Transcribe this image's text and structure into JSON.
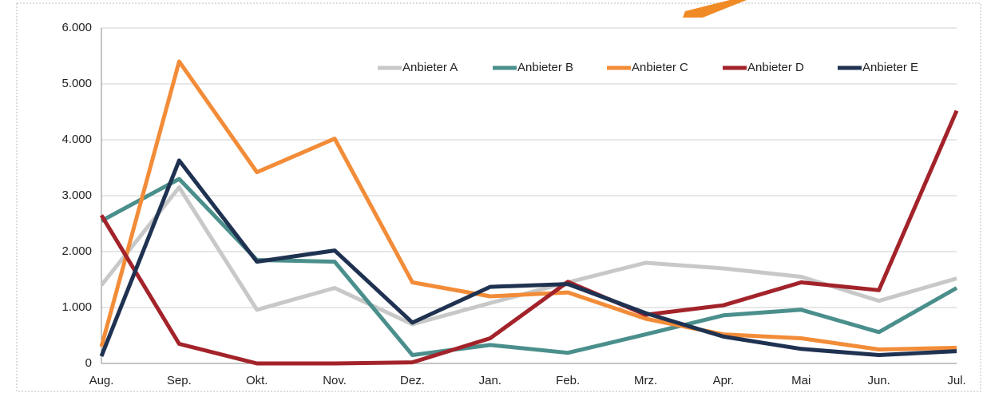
{
  "chart_data": {
    "type": "line",
    "categories": [
      "Aug.",
      "Sep.",
      "Okt.",
      "Nov.",
      "Dez.",
      "Jan.",
      "Feb.",
      "Mrz.",
      "Apr.",
      "Mai",
      "Jun.",
      "Jul."
    ],
    "series": [
      {
        "name": "Anbieter A",
        "color": "#c8c8c8",
        "values": [
          1400,
          3150,
          960,
          1350,
          700,
          1080,
          1450,
          1800,
          1700,
          1550,
          1120,
          1520
        ]
      },
      {
        "name": "Anbieter B",
        "color": "#4a8f8c",
        "values": [
          2550,
          3300,
          1850,
          1820,
          150,
          330,
          190,
          520,
          860,
          960,
          560,
          1350
        ]
      },
      {
        "name": "Anbieter C",
        "color": "#f28c38",
        "values": [
          300,
          5400,
          3420,
          4020,
          1450,
          1200,
          1270,
          800,
          520,
          450,
          250,
          280
        ]
      },
      {
        "name": "Anbieter D",
        "color": "#a3232a",
        "values": [
          2650,
          350,
          0,
          0,
          20,
          450,
          1460,
          870,
          1040,
          1450,
          1310,
          4520
        ]
      },
      {
        "name": "Anbieter E",
        "color": "#1f3251",
        "values": [
          130,
          3630,
          1820,
          2020,
          730,
          1370,
          1420,
          900,
          480,
          260,
          150,
          220
        ]
      }
    ],
    "ylim": [
      0,
      6000
    ],
    "yticks": [
      {
        "value": 0,
        "label": "0"
      },
      {
        "value": 1000,
        "label": "1.000"
      },
      {
        "value": 2000,
        "label": "2.000"
      },
      {
        "value": 3000,
        "label": "3.000"
      },
      {
        "value": 4000,
        "label": "4.000"
      },
      {
        "value": 5000,
        "label": "5.000"
      },
      {
        "value": 6000,
        "label": "6.000"
      }
    ],
    "grid": true,
    "legend": "top-right"
  }
}
